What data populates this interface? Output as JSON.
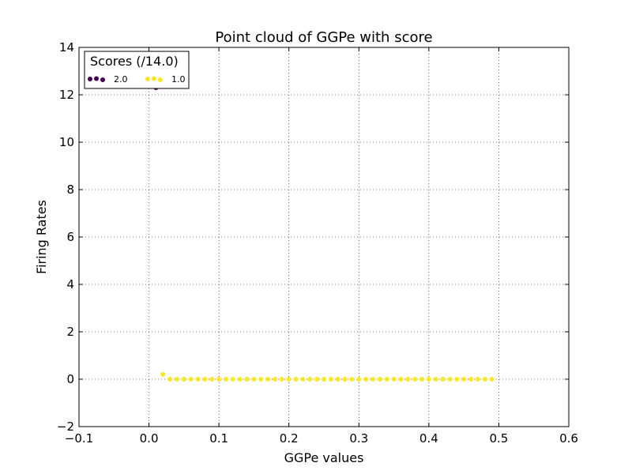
{
  "chart_data": {
    "type": "scatter",
    "title": "Point cloud of GGPe with score",
    "xlabel": "GGPe values",
    "ylabel": "Firing Rates",
    "xlim": [
      -0.1,
      0.6
    ],
    "ylim": [
      -2,
      14
    ],
    "xticks": [
      -0.1,
      0.0,
      0.1,
      0.2,
      0.3,
      0.4,
      0.5,
      0.6
    ],
    "yticks": [
      -2,
      0,
      2,
      4,
      6,
      8,
      10,
      12,
      14
    ],
    "xtick_labels": [
      "−0.1",
      "0.0",
      "0.1",
      "0.2",
      "0.3",
      "0.4",
      "0.5",
      "0.6"
    ],
    "ytick_labels": [
      "−2",
      "0",
      "2",
      "4",
      "6",
      "8",
      "10",
      "12",
      "14"
    ],
    "grid": true,
    "legend": {
      "title": "Scores (/14.0)",
      "placement": "top-left",
      "entries": [
        {
          "label": "2.0",
          "color": "#440154"
        },
        {
          "label": "1.0",
          "color": "#fde725"
        }
      ]
    },
    "series": [
      {
        "label": "2.0",
        "color": "#440154",
        "points": [
          [
            0.01,
            12.3
          ]
        ]
      },
      {
        "label": "1.0",
        "color": "#fde725",
        "points": [
          [
            0.02,
            0.2
          ],
          [
            0.03,
            0
          ],
          [
            0.04,
            0
          ],
          [
            0.05,
            0
          ],
          [
            0.06,
            0
          ],
          [
            0.07,
            0
          ],
          [
            0.08,
            0
          ],
          [
            0.09,
            0
          ],
          [
            0.1,
            0
          ],
          [
            0.11,
            0
          ],
          [
            0.12,
            0
          ],
          [
            0.13,
            0
          ],
          [
            0.14,
            0
          ],
          [
            0.15,
            0
          ],
          [
            0.16,
            0
          ],
          [
            0.17,
            0
          ],
          [
            0.18,
            0
          ],
          [
            0.19,
            0
          ],
          [
            0.2,
            0
          ],
          [
            0.21,
            0
          ],
          [
            0.22,
            0
          ],
          [
            0.23,
            0
          ],
          [
            0.24,
            0
          ],
          [
            0.25,
            0
          ],
          [
            0.26,
            0
          ],
          [
            0.27,
            0
          ],
          [
            0.28,
            0
          ],
          [
            0.29,
            0
          ],
          [
            0.3,
            0
          ],
          [
            0.31,
            0
          ],
          [
            0.32,
            0
          ],
          [
            0.33,
            0
          ],
          [
            0.34,
            0
          ],
          [
            0.35,
            0
          ],
          [
            0.36,
            0
          ],
          [
            0.37,
            0
          ],
          [
            0.38,
            0
          ],
          [
            0.39,
            0
          ],
          [
            0.4,
            0
          ],
          [
            0.41,
            0
          ],
          [
            0.42,
            0
          ],
          [
            0.43,
            0
          ],
          [
            0.44,
            0
          ],
          [
            0.45,
            0
          ],
          [
            0.46,
            0
          ],
          [
            0.47,
            0
          ],
          [
            0.48,
            0
          ],
          [
            0.49,
            0
          ]
        ]
      }
    ]
  }
}
